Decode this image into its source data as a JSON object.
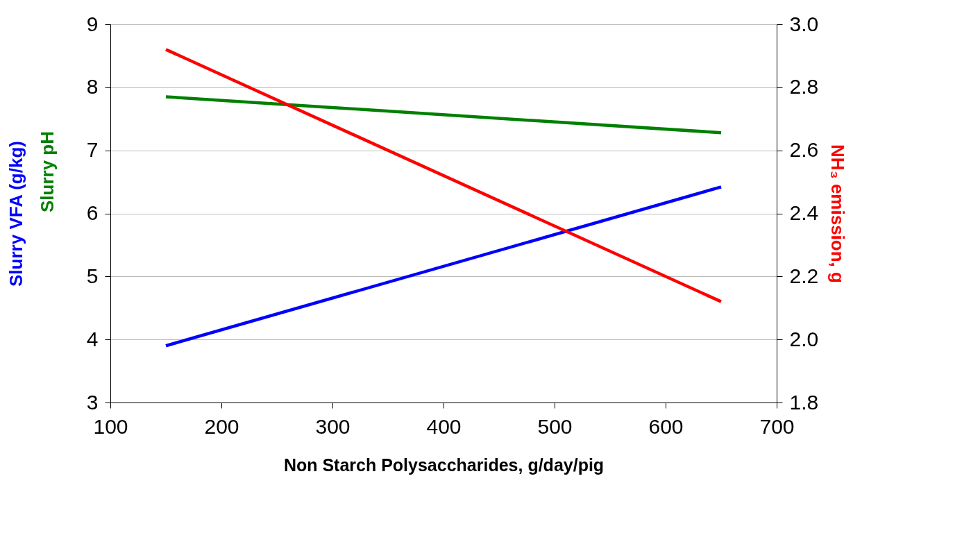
{
  "chart_data": {
    "type": "line",
    "xlabel": "Non Starch Polysaccharides, g/day/pig",
    "ylabel": "Slurry VFA (g/kg)",
    "y2label": "NH₃ emission, g",
    "x": [
      150,
      650
    ],
    "series": [
      {
        "color": "#0000ff",
        "values": [
          3.9,
          6.42
        ]
      },
      {
        "name": "Slurry pH",
        "color": "#008000",
        "values": [
          7.85,
          7.28
        ]
      },
      {
        "color": "#ff0000",
        "values": [
          2.92,
          2.12
        ],
        "axis": "y2"
      }
    ],
    "xlim": [
      100,
      700
    ],
    "xticks": [
      100,
      200,
      300,
      400,
      500,
      600,
      700
    ],
    "ylim": [
      3,
      9
    ],
    "yticks": [
      3,
      4,
      5,
      6,
      7,
      8,
      9
    ],
    "y2lim": [
      1.8,
      3.0
    ],
    "y2ticks": [
      {
        "value": 1.8,
        "label": "1.8"
      },
      {
        "value": 2.0,
        "label": "2.0"
      },
      {
        "value": 2.2,
        "label": "2.2"
      },
      {
        "value": 2.4,
        "label": "2.4"
      },
      {
        "value": 2.6,
        "label": "2.6"
      },
      {
        "value": 2.8,
        "label": "2.8"
      },
      {
        "value": 3.0,
        "label": "3.0"
      }
    ],
    "grid": "y",
    "marker": "none",
    "line_style": "solid"
  }
}
